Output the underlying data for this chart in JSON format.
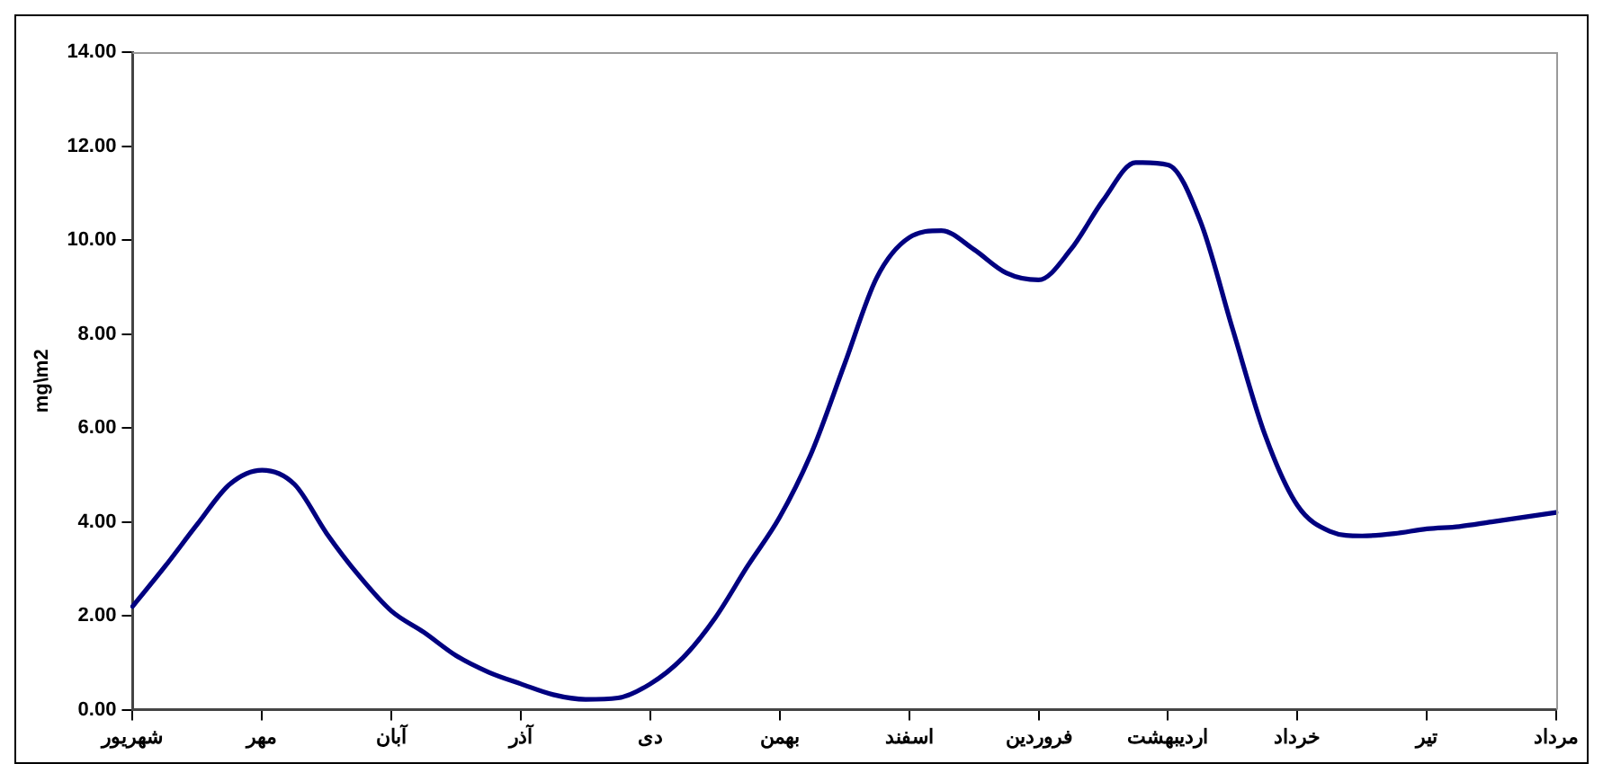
{
  "chart_data": {
    "type": "line",
    "ylabel": "mg\\m2",
    "categories": [
      "شهریور",
      null,
      null,
      null,
      "مهر",
      null,
      null,
      null,
      "آبان",
      null,
      null,
      null,
      "آذر",
      null,
      null,
      null,
      "دی",
      null,
      null,
      null,
      "بهمن",
      null,
      null,
      null,
      "اسفند",
      null,
      null,
      null,
      "فروردین",
      null,
      null,
      null,
      "اردیبهشت",
      null,
      null,
      null,
      "خرداد",
      null,
      null,
      null,
      "تیر",
      null,
      null,
      null,
      "مرداد"
    ],
    "ylim": [
      0,
      14
    ],
    "yticks": [
      {
        "value": 0,
        "label": "0.00"
      },
      {
        "value": 2,
        "label": "2.00"
      },
      {
        "value": 4,
        "label": "4.00"
      },
      {
        "value": 6,
        "label": "6.00"
      },
      {
        "value": 8,
        "label": "8.00"
      },
      {
        "value": 10,
        "label": "10.00"
      },
      {
        "value": 12,
        "label": "12.00"
      },
      {
        "value": 14,
        "label": "14.00"
      }
    ],
    "grid": false,
    "legend": false,
    "marker": "none",
    "line_style": "solid",
    "series": [
      {
        "color": "#000080",
        "values": [
          2.2,
          3.05,
          3.95,
          4.8,
          5.1,
          4.8,
          3.75,
          2.85,
          2.1,
          1.65,
          1.15,
          0.8,
          0.55,
          0.32,
          0.22,
          0.25,
          0.55,
          1.1,
          1.95,
          3.05,
          4.1,
          5.5,
          7.35,
          9.2,
          10.05,
          10.2,
          9.8,
          9.3,
          9.15,
          9.8,
          10.85,
          11.65,
          11.6,
          10.4,
          8.1,
          5.85,
          4.35,
          3.8,
          3.7,
          3.75,
          3.85,
          3.9,
          4,
          4.1,
          4.2
        ]
      }
    ]
  }
}
